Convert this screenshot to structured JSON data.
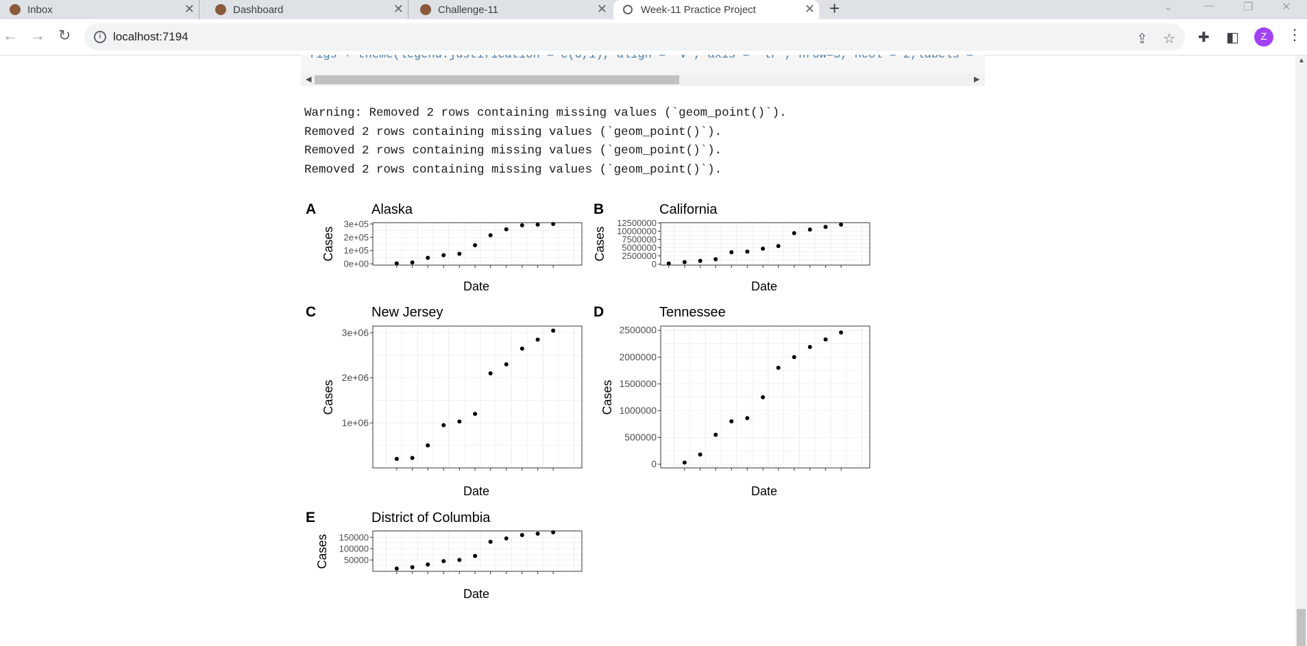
{
  "browser": {
    "tabs": [
      {
        "title": "Inbox",
        "icon": "email-favicon"
      },
      {
        "title": "Dashboard",
        "icon": "dashboard-favicon"
      },
      {
        "title": "Challenge-11",
        "icon": "challenge-favicon"
      },
      {
        "title": "Week-11 Practice Project",
        "icon": "globe-icon",
        "active": true
      }
    ],
    "url": "localhost:7194",
    "profile_initial": "Z"
  },
  "code": {
    "line": "figs + theme(legend.justification = c(0,1), align = \"v\", axis = \"lr\", nrow=3, ncol = 2,labels ="
  },
  "output": {
    "lines": [
      "Warning: Removed 2 rows containing missing values (`geom_point()`).",
      "Removed 2 rows containing missing values (`geom_point()`).",
      "Removed 2 rows containing missing values (`geom_point()`).",
      "Removed 2 rows containing missing values (`geom_point()`)."
    ]
  },
  "chart_data": [
    {
      "type": "scatter",
      "panel_label": "A",
      "title": "Alaska",
      "xlabel": "Date",
      "ylabel": "Cases",
      "yticks": [
        0,
        100000,
        200000,
        300000
      ],
      "ytick_labels": [
        "0e+00",
        "1e+05",
        "2e+05",
        "3e+05"
      ],
      "ylim": [
        -10000,
        310000
      ],
      "x": [
        "2020-09",
        "2020-12",
        "2021-03",
        "2021-06",
        "2021-09",
        "2021-12",
        "2022-03",
        "2022-06",
        "2022-09",
        "2022-12",
        "2023-03"
      ],
      "y": [
        3000,
        10000,
        45000,
        65000,
        75000,
        140000,
        215000,
        260000,
        290000,
        295000,
        300000
      ]
    },
    {
      "type": "scatter",
      "panel_label": "B",
      "title": "California",
      "xlabel": "Date",
      "ylabel": "Cases",
      "yticks": [
        0,
        2500000,
        5000000,
        7500000,
        10000000,
        12500000
      ],
      "ytick_labels": [
        "0",
        "2500000",
        "5000000",
        "7500000",
        "10000000",
        "12500000"
      ],
      "ylim": [
        -300000,
        12600000
      ],
      "x": [
        "2020-06",
        "2020-09",
        "2020-12",
        "2021-03",
        "2021-06",
        "2021-09",
        "2021-12",
        "2022-03",
        "2022-06",
        "2022-09",
        "2022-12",
        "2023-03"
      ],
      "y": [
        200000,
        600000,
        1000000,
        1500000,
        3600000,
        3800000,
        4700000,
        5500000,
        9400000,
        10500000,
        11300000,
        12000000
      ]
    },
    {
      "type": "scatter",
      "panel_label": "C",
      "title": "New Jersey",
      "xlabel": "Date",
      "ylabel": "Cases",
      "yticks": [
        1000000,
        2000000,
        3000000
      ],
      "ytick_labels": [
        "1e+06",
        "2e+06",
        "3e+06"
      ],
      "ylim": [
        0,
        3150000
      ],
      "x": [
        "2020-09",
        "2020-12",
        "2021-03",
        "2021-06",
        "2021-09",
        "2021-12",
        "2022-03",
        "2022-06",
        "2022-09",
        "2022-12",
        "2023-03"
      ],
      "y": [
        200000,
        220000,
        500000,
        950000,
        1030000,
        1200000,
        2100000,
        2300000,
        2650000,
        2850000,
        3050000
      ]
    },
    {
      "type": "scatter",
      "panel_label": "D",
      "title": "Tennessee",
      "xlabel": "Date",
      "ylabel": "Cases",
      "yticks": [
        0,
        500000,
        1000000,
        1500000,
        2000000,
        2500000
      ],
      "ytick_labels": [
        "0",
        "500000",
        "1000000",
        "1500000",
        "2000000",
        "2500000"
      ],
      "ylim": [
        -70000,
        2580000
      ],
      "x": [
        "2020-09",
        "2020-12",
        "2021-03",
        "2021-06",
        "2021-09",
        "2021-12",
        "2022-03",
        "2022-06",
        "2022-09",
        "2022-12",
        "2023-03"
      ],
      "y": [
        30000,
        180000,
        550000,
        800000,
        860000,
        1250000,
        1800000,
        2000000,
        2190000,
        2330000,
        2460000
      ]
    },
    {
      "type": "scatter",
      "panel_label": "E",
      "title": "District of Columbia",
      "xlabel": "Date",
      "ylabel": "Cases",
      "yticks": [
        50000,
        100000,
        150000
      ],
      "ytick_labels": [
        "50000",
        "100000",
        "150000"
      ],
      "ylim": [
        0,
        178000
      ],
      "x": [
        "2020-09",
        "2020-12",
        "2021-03",
        "2021-06",
        "2021-09",
        "2021-12",
        "2022-03",
        "2022-06",
        "2022-09",
        "2022-12",
        "2023-03"
      ],
      "y": [
        12000,
        18000,
        30000,
        45000,
        50000,
        68000,
        130000,
        145000,
        160000,
        166000,
        172000
      ]
    }
  ]
}
